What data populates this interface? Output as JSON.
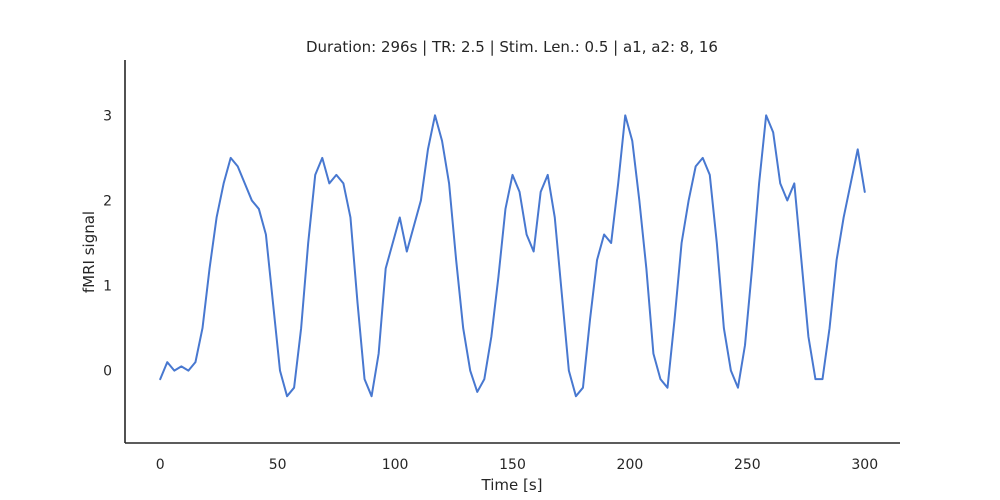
{
  "chart_data": {
    "type": "line",
    "title": "Duration: 296s | TR: 2.5 | Stim. Len.: 0.5 | a1, a2: 8, 16",
    "xlabel": "Time [s]",
    "ylabel": "fMRI signal",
    "xlim": [
      -15,
      315
    ],
    "ylim": [
      -0.85,
      3.65
    ],
    "xticks": [
      0,
      50,
      100,
      150,
      200,
      250,
      300
    ],
    "yticks": [
      0,
      1,
      2,
      3
    ],
    "grid": false,
    "line_color": "#4878d0",
    "series": [
      {
        "x": [
          0,
          3,
          6,
          9,
          12,
          15,
          18,
          21,
          24,
          27,
          30,
          33,
          36,
          39,
          42,
          45,
          48,
          51,
          54,
          57,
          60,
          63,
          66,
          69,
          72,
          75,
          78,
          81,
          84,
          87,
          90,
          93,
          96,
          99,
          102,
          105,
          108,
          111,
          114,
          117,
          120,
          123,
          126,
          129,
          132,
          135,
          138,
          141,
          144,
          147,
          150,
          153,
          156,
          159,
          162,
          165,
          168,
          171,
          174,
          177,
          180,
          183,
          186,
          189,
          192,
          195,
          198,
          201,
          204,
          207,
          210,
          213,
          216,
          219,
          222,
          225,
          228,
          231,
          234,
          237,
          240,
          243,
          246,
          249,
          252,
          255,
          258,
          261,
          264,
          267,
          270,
          273,
          276,
          279,
          282,
          285,
          288,
          291,
          294,
          297,
          300
        ],
        "y": [
          -0.1,
          0.1,
          0.0,
          0.05,
          0.0,
          0.1,
          0.5,
          1.2,
          1.8,
          2.2,
          2.5,
          2.4,
          2.2,
          2.0,
          1.9,
          1.6,
          0.8,
          0.0,
          -0.3,
          -0.2,
          0.5,
          1.5,
          2.3,
          2.5,
          2.2,
          2.3,
          2.2,
          1.8,
          0.8,
          -0.1,
          -0.3,
          0.2,
          1.2,
          1.5,
          1.8,
          1.4,
          1.7,
          2.0,
          2.6,
          3.0,
          2.7,
          2.2,
          1.3,
          0.5,
          0.0,
          -0.25,
          -0.1,
          0.4,
          1.1,
          1.9,
          2.3,
          2.1,
          1.6,
          1.4,
          2.1,
          2.3,
          1.8,
          0.9,
          0.0,
          -0.3,
          -0.2,
          0.6,
          1.3,
          1.6,
          1.5,
          2.2,
          3.0,
          2.7,
          2.0,
          1.2,
          0.2,
          -0.1,
          -0.2,
          0.6,
          1.5,
          2.0,
          2.4,
          2.5,
          2.3,
          1.5,
          0.5,
          0.0,
          -0.2,
          0.3,
          1.2,
          2.2,
          3.0,
          2.8,
          2.2,
          2.0,
          2.2,
          1.3,
          0.4,
          -0.1,
          -0.1,
          0.5,
          1.3,
          1.8,
          2.2,
          2.6,
          2.1
        ]
      }
    ]
  }
}
